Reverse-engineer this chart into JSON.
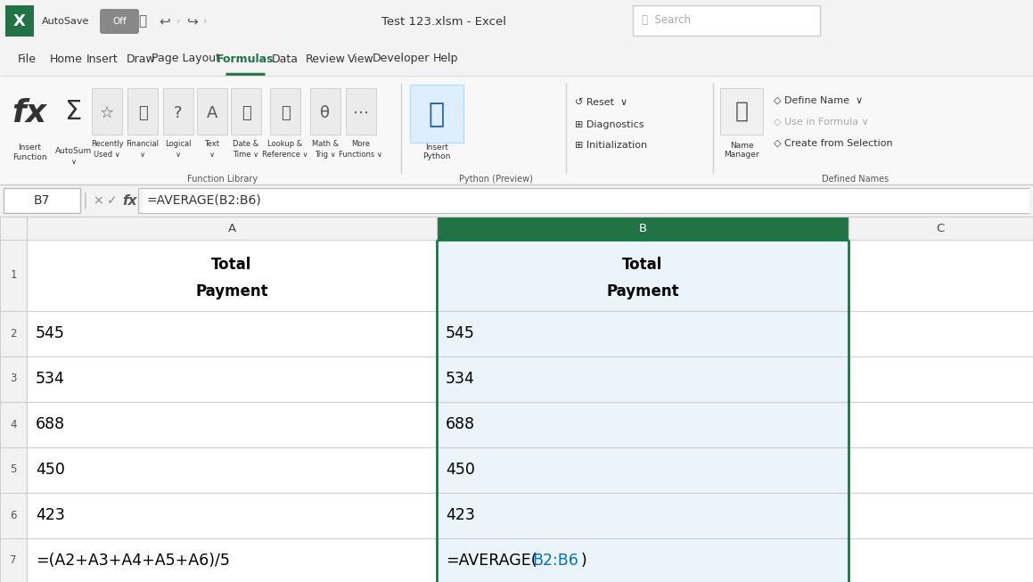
{
  "title_bar_bg": "#f3f3f3",
  "title_bar_text": "Test 123.xlsm - Excel",
  "menu_items": [
    "File",
    "Home",
    "Insert",
    "Draw",
    "Page Layout",
    "Formulas",
    "Data",
    "Review",
    "View",
    "Developer",
    "Help"
  ],
  "active_menu": "Formulas",
  "active_menu_color": "#217346",
  "formula_bar_cell": "B7",
  "formula_bar_formula": "=AVERAGE(B2:B6)",
  "col_A_data": [
    "545",
    "534",
    "688",
    "450",
    "423",
    "=(A2+A3+A4+A5+A6)/5"
  ],
  "col_B_data": [
    "545",
    "534",
    "688",
    "450",
    "423",
    "=AVERAGE(B2:B6)"
  ],
  "blue_ref_color": "#0070C0",
  "selected_border_color": "#107c41",
  "col_header_selected_bg": "#217346",
  "col_header_selected_text": "#ffffff",
  "col_header_bg": "#f2f2f2",
  "row_header_bg": "#f2f2f2",
  "cell_selected_bg": "#e6f2ea",
  "grid_color": "#d0d0d0",
  "white": "#ffffff",
  "light_bg": "#f2f2f2"
}
